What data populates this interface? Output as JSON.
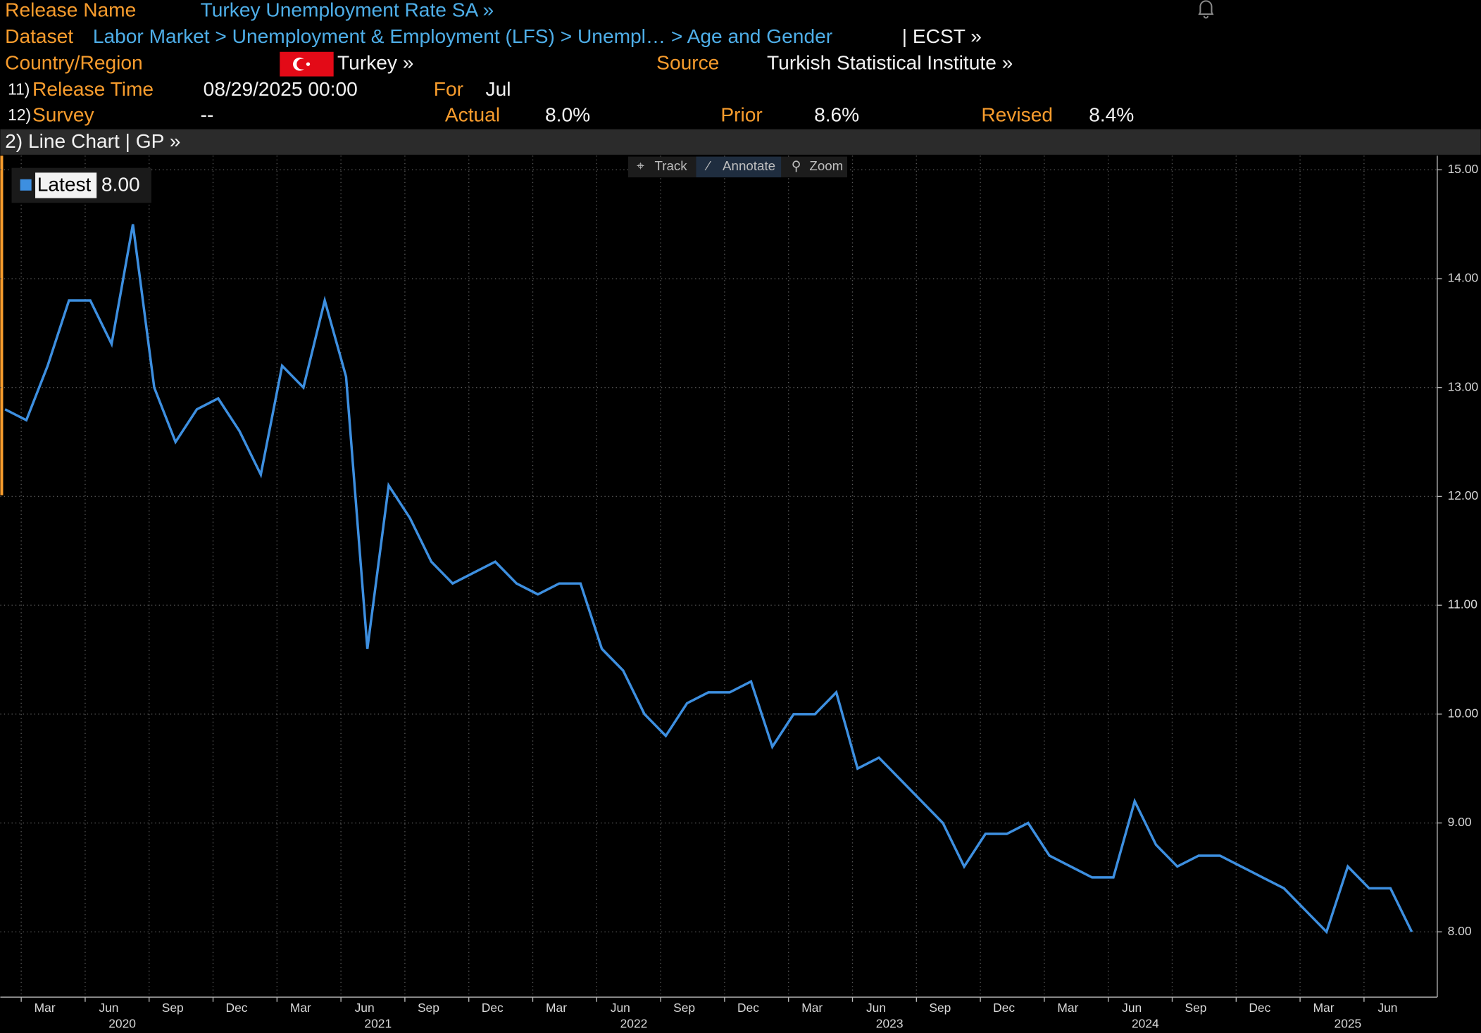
{
  "header": {
    "release_name_label": "Release Name",
    "release_name": "Turkey Unemployment Rate SA »",
    "dataset_label": "Dataset",
    "dataset_path": "Labor Market > Unemployment & Employment (LFS) > Unempl…  > Age and Gender",
    "dataset_suffix": "| ECST »",
    "country_label": "Country/Region",
    "country": "Turkey »",
    "source_label": "Source",
    "source": "Turkish Statistical Institute »",
    "release_time_num": "11)",
    "release_time_label": "Release Time",
    "release_time": "08/29/2025 00:00",
    "for_label": "For",
    "for": "Jul",
    "survey_num": "12)",
    "survey_label": "Survey",
    "survey": "--",
    "actual_label": "Actual",
    "actual": "8.0%",
    "prior_label": "Prior",
    "prior": "8.6%",
    "revised_label": "Revised",
    "revised": "8.4%"
  },
  "tab": "2) Line Chart | GP »",
  "toolbar": [
    "Track",
    "Annotate",
    "Zoom"
  ],
  "chart_data": {
    "type": "line",
    "x": [
      "2020-01",
      "2020-02",
      "2020-03",
      "2020-04",
      "2020-05",
      "2020-06",
      "2020-07",
      "2020-08",
      "2020-09",
      "2020-10",
      "2020-11",
      "2020-12",
      "2021-01",
      "2021-02",
      "2021-03",
      "2021-04",
      "2021-05",
      "2021-06",
      "2021-07",
      "2021-08",
      "2021-09",
      "2021-10",
      "2021-11",
      "2021-12",
      "2022-01",
      "2022-02",
      "2022-03",
      "2022-04",
      "2022-05",
      "2022-06",
      "2022-07",
      "2022-08",
      "2022-09",
      "2022-10",
      "2022-11",
      "2022-12",
      "2023-01",
      "2023-02",
      "2023-03",
      "2023-04",
      "2023-05",
      "2023-06",
      "2023-07",
      "2023-08",
      "2023-09",
      "2023-10",
      "2023-11",
      "2023-12",
      "2024-01",
      "2024-02",
      "2024-03",
      "2024-04",
      "2024-05",
      "2024-06",
      "2024-07",
      "2024-08",
      "2024-09",
      "2024-10",
      "2024-11",
      "2024-12",
      "2025-01",
      "2025-02",
      "2025-03",
      "2025-04",
      "2025-05",
      "2025-06",
      "2025-07"
    ],
    "series": [
      {
        "name": "Latest",
        "color": "#3d8fe0",
        "legend_value_label": "8.00",
        "values": [
          12.8,
          12.7,
          13.2,
          13.8,
          13.8,
          13.4,
          14.5,
          13.0,
          12.5,
          12.8,
          12.9,
          12.6,
          12.2,
          13.2,
          13.0,
          13.8,
          13.1,
          10.6,
          12.1,
          11.8,
          11.4,
          11.2,
          11.3,
          11.4,
          11.2,
          11.1,
          11.2,
          11.2,
          10.6,
          10.4,
          10.0,
          9.8,
          10.1,
          10.2,
          10.2,
          10.3,
          9.7,
          10.0,
          10.0,
          10.2,
          9.5,
          9.6,
          9.4,
          9.2,
          9.0,
          8.6,
          8.9,
          8.9,
          9.0,
          8.7,
          8.6,
          8.5,
          8.5,
          9.2,
          8.8,
          8.6,
          8.7,
          8.7,
          8.6,
          8.5,
          8.4,
          8.2,
          8.0,
          8.6,
          8.4,
          8.4,
          8.0
        ]
      }
    ],
    "xlim": [
      "2020-01",
      "2025-07"
    ],
    "xticks": [
      {
        "value": "2020-03",
        "label": "Mar"
      },
      {
        "value": "2020-06",
        "label": "Jun"
      },
      {
        "value": "2020-09",
        "label": "Sep"
      },
      {
        "value": "2020-12",
        "label": "Dec"
      },
      {
        "value": "2021-03",
        "label": "Mar"
      },
      {
        "value": "2021-06",
        "label": "Jun"
      },
      {
        "value": "2021-09",
        "label": "Sep"
      },
      {
        "value": "2021-12",
        "label": "Dec"
      },
      {
        "value": "2022-03",
        "label": "Mar"
      },
      {
        "value": "2022-06",
        "label": "Jun"
      },
      {
        "value": "2022-09",
        "label": "Sep"
      },
      {
        "value": "2022-12",
        "label": "Dec"
      },
      {
        "value": "2023-03",
        "label": "Mar"
      },
      {
        "value": "2023-06",
        "label": "Jun"
      },
      {
        "value": "2023-09",
        "label": "Sep"
      },
      {
        "value": "2023-12",
        "label": "Dec"
      },
      {
        "value": "2024-03",
        "label": "Mar"
      },
      {
        "value": "2024-06",
        "label": "Jun"
      },
      {
        "value": "2024-09",
        "label": "Sep"
      },
      {
        "value": "2024-12",
        "label": "Dec"
      },
      {
        "value": "2025-03",
        "label": "Mar"
      },
      {
        "value": "2025-06",
        "label": "Jun"
      }
    ],
    "x_years": [
      "2020",
      "2021",
      "2022",
      "2023",
      "2024",
      "2025"
    ],
    "ylim": [
      7.4,
      15.13
    ],
    "yticks": [
      {
        "value": 8,
        "label": "8.00"
      },
      {
        "value": 9,
        "label": "9.00"
      },
      {
        "value": 10,
        "label": "10.00"
      },
      {
        "value": 11,
        "label": "11.00"
      },
      {
        "value": 12,
        "label": "12.00"
      },
      {
        "value": 13,
        "label": "13.00"
      },
      {
        "value": 14,
        "label": "14.00"
      },
      {
        "value": 15,
        "label": "15.00"
      }
    ],
    "y_axis_side": "right",
    "grid": true
  }
}
